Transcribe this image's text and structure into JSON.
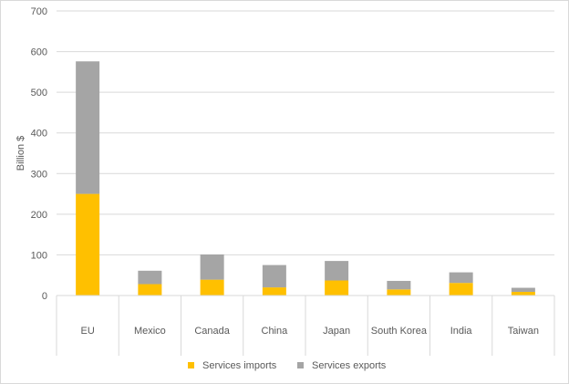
{
  "chart_data": {
    "type": "bar",
    "stacked": true,
    "title": "",
    "xlabel": "",
    "ylabel": "Billion $",
    "ylim": [
      0,
      700
    ],
    "yticks": [
      0,
      100,
      200,
      300,
      400,
      500,
      600,
      700
    ],
    "grid": true,
    "legend_position": "bottom",
    "categories": [
      "EU",
      "Mexico",
      "Canada",
      "China",
      "Japan",
      "South Korea",
      "India",
      "Taiwan"
    ],
    "series": [
      {
        "name": "Services imports",
        "color": "#ffc000",
        "values": [
          250,
          28,
          39,
          20,
          37,
          15,
          31,
          9
        ]
      },
      {
        "name": "Services exports",
        "color": "#a5a5a5",
        "values": [
          326,
          33,
          62,
          55,
          48,
          21,
          26,
          10
        ]
      }
    ]
  }
}
